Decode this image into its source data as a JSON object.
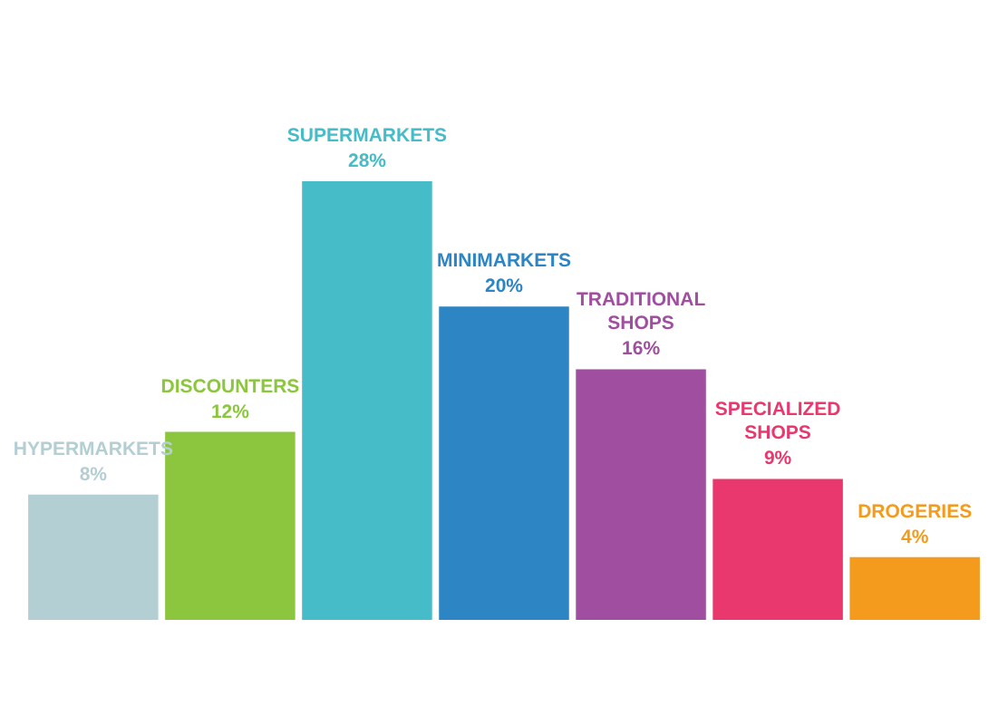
{
  "chart_data": {
    "type": "bar",
    "categories": [
      "HYPERMARKETS",
      "DISCOUNTERS",
      "SUPERMARKETS",
      "MINIMARKETS",
      "TRADITIONAL SHOPS",
      "SPECIALIZED SHOPS",
      "DROGERIES"
    ],
    "values": [
      8,
      12,
      28,
      20,
      16,
      9,
      4
    ],
    "value_labels": [
      "8%",
      "12%",
      "28%",
      "20%",
      "16%",
      "9%",
      "4%"
    ],
    "colors": [
      "#b3cfd3",
      "#8cc63f",
      "#45bcc8",
      "#2d85c3",
      "#a04fa0",
      "#e8386d",
      "#f49a1c"
    ]
  }
}
